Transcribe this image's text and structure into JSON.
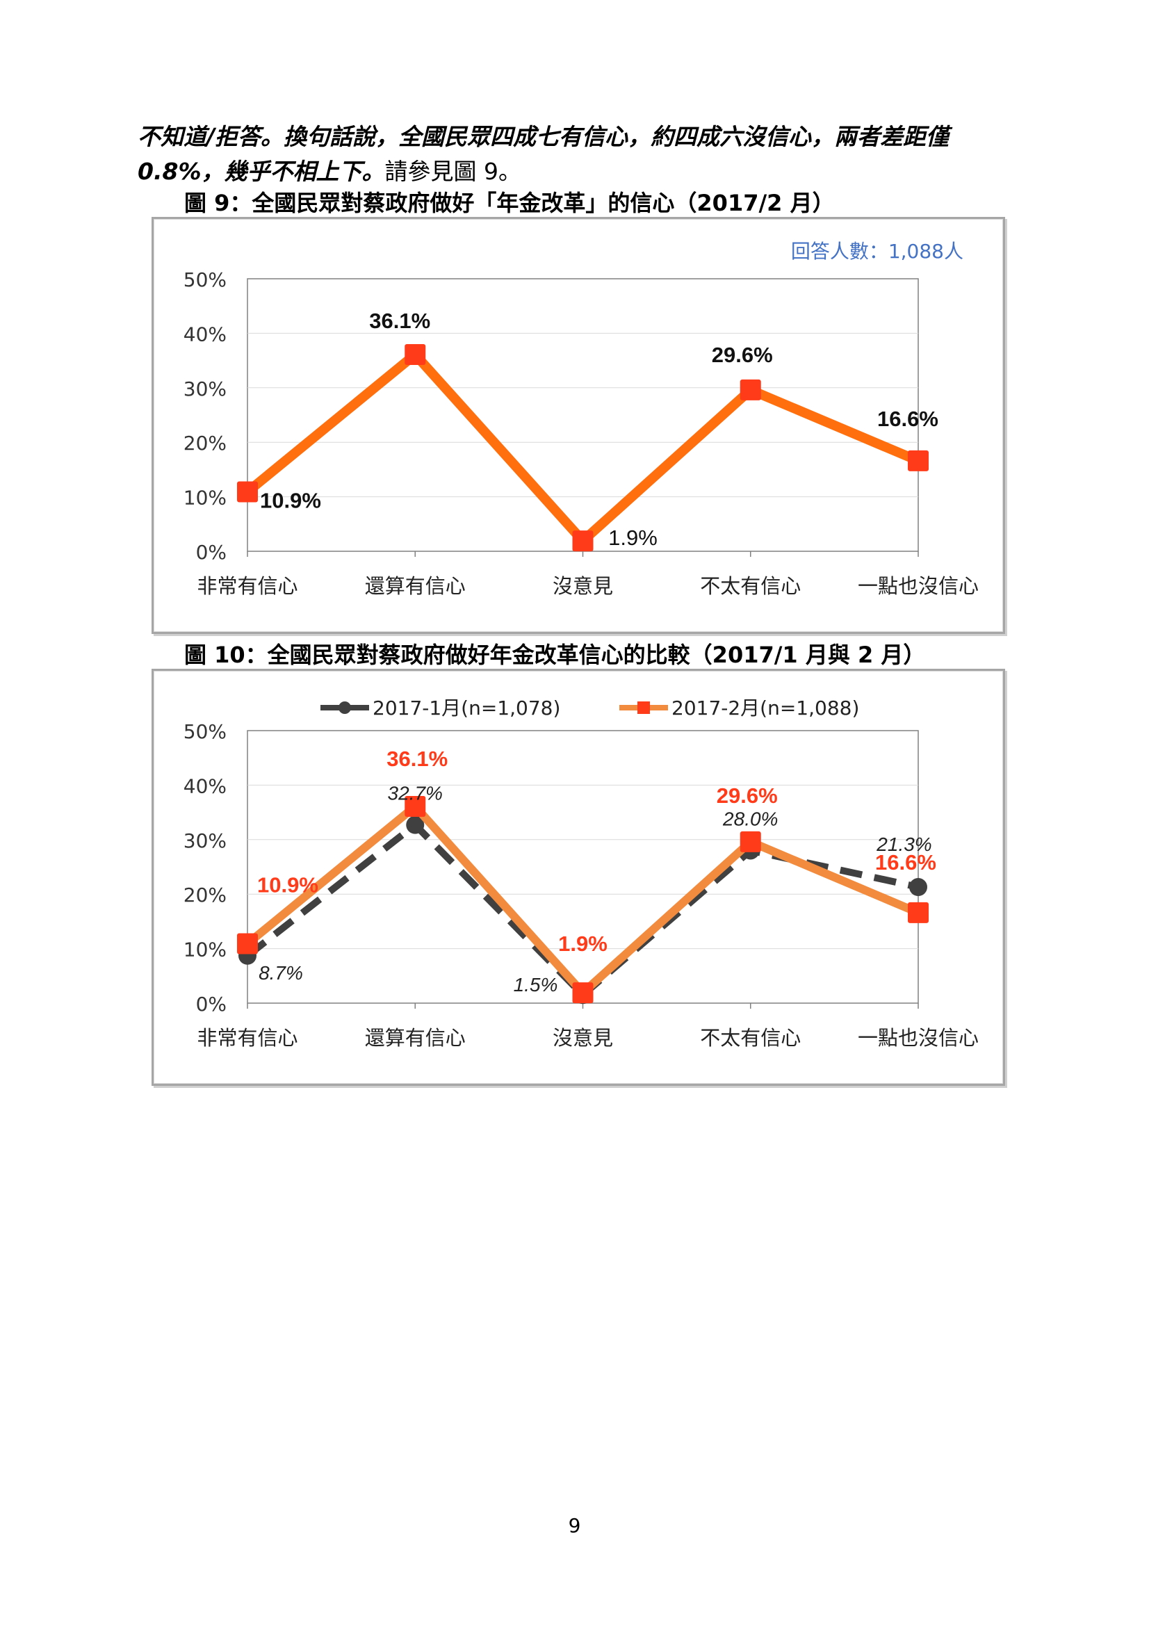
{
  "paragraph": {
    "emphasis": "不知道/拒答。換句話說，全國民眾四成七有信心，約四成六沒信心，兩者差距僅0.8%，幾乎不相上下。",
    "plain": "請參見圖 9。"
  },
  "figures": [
    {
      "caption": "圖 9：全國民眾對蔡政府做好「年金改革」的信心（2017/2 月）"
    },
    {
      "caption": "圖 10：全國民眾對蔡政府做好年金改革信心的比較（2017/1 月與 2 月）"
    }
  ],
  "page_number": "9",
  "colors": {
    "orange": "#ff6f0e",
    "red_marker": "#ff3b1a",
    "orange2": "#f28b3e",
    "dark": "#404040",
    "blue": "#4472c4",
    "red_label": "#ff3b1a"
  },
  "chart_data": [
    {
      "type": "line",
      "categories": [
        "非常有信心",
        "還算有信心",
        "沒意見",
        "不太有信心",
        "一點也沒信心"
      ],
      "yticks": [
        "0%",
        "10%",
        "20%",
        "30%",
        "40%",
        "50%"
      ],
      "ylim": [
        0,
        50
      ],
      "note": "回答人數：1,088人",
      "grid": true,
      "legend": "none",
      "series": [
        {
          "values": [
            10.9,
            36.1,
            1.9,
            29.6,
            16.6
          ],
          "labels": [
            "10.9%",
            "36.1%",
            "1.9%",
            "29.6%",
            "16.6%"
          ]
        }
      ]
    },
    {
      "type": "line",
      "categories": [
        "非常有信心",
        "還算有信心",
        "沒意見",
        "不太有信心",
        "一點也沒信心"
      ],
      "yticks": [
        "0%",
        "10%",
        "20%",
        "30%",
        "40%",
        "50%"
      ],
      "ylim": [
        0,
        50
      ],
      "grid": true,
      "legend": "top",
      "series": [
        {
          "name": "2017-1月(n=1,078)",
          "values": [
            8.7,
            32.7,
            1.5,
            28.0,
            21.3
          ],
          "labels": [
            "8.7%",
            "32.7%",
            "1.5%",
            "28.0%",
            "21.3%"
          ]
        },
        {
          "name": "2017-2月(n=1,088)",
          "values": [
            10.9,
            36.1,
            1.9,
            29.6,
            16.6
          ],
          "labels": [
            "10.9%",
            "36.1%",
            "1.9%",
            "29.6%",
            "16.6%"
          ]
        }
      ]
    }
  ]
}
